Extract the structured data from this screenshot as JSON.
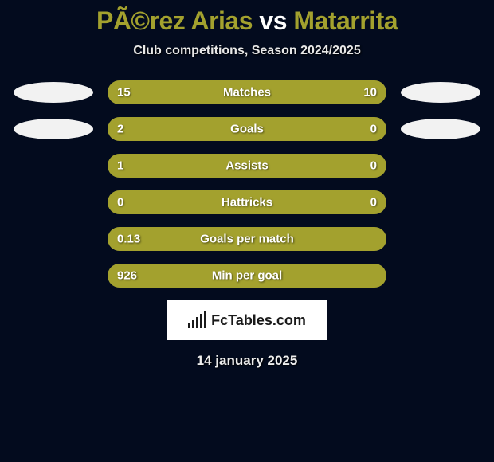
{
  "title": {
    "player1": "PÃ©rez Arias",
    "vs": "vs",
    "player2": "Matarrita"
  },
  "title_colors": {
    "player1": "#a3a12e",
    "vs": "#ffffff",
    "player2": "#a3a12e"
  },
  "subtitle": "Club competitions, Season 2024/2025",
  "avatar_colors": {
    "left": "#f2f2f2",
    "right": "#f2f2f2"
  },
  "bar_colors": {
    "left_fill": "#a3a12e",
    "right_fill": "#a3a12e",
    "track": "#0e1530"
  },
  "stats": [
    {
      "label": "Matches",
      "left_val": "15",
      "right_val": "10",
      "left_pct": 60,
      "right_pct": 40,
      "show_avatars": true
    },
    {
      "label": "Goals",
      "left_val": "2",
      "right_val": "0",
      "left_pct": 75,
      "right_pct": 25,
      "show_avatars": true
    },
    {
      "label": "Assists",
      "left_val": "1",
      "right_val": "0",
      "left_pct": 75,
      "right_pct": 25,
      "show_avatars": false
    },
    {
      "label": "Hattricks",
      "left_val": "0",
      "right_val": "0",
      "left_pct": 50,
      "right_pct": 50,
      "show_avatars": false
    },
    {
      "label": "Goals per match",
      "left_val": "0.13",
      "right_val": "",
      "left_pct": 100,
      "right_pct": 0,
      "show_avatars": false
    },
    {
      "label": "Min per goal",
      "left_val": "926",
      "right_val": "",
      "left_pct": 100,
      "right_pct": 0,
      "show_avatars": false
    }
  ],
  "logo_text": "FcTables.com",
  "date": "14 january 2025"
}
